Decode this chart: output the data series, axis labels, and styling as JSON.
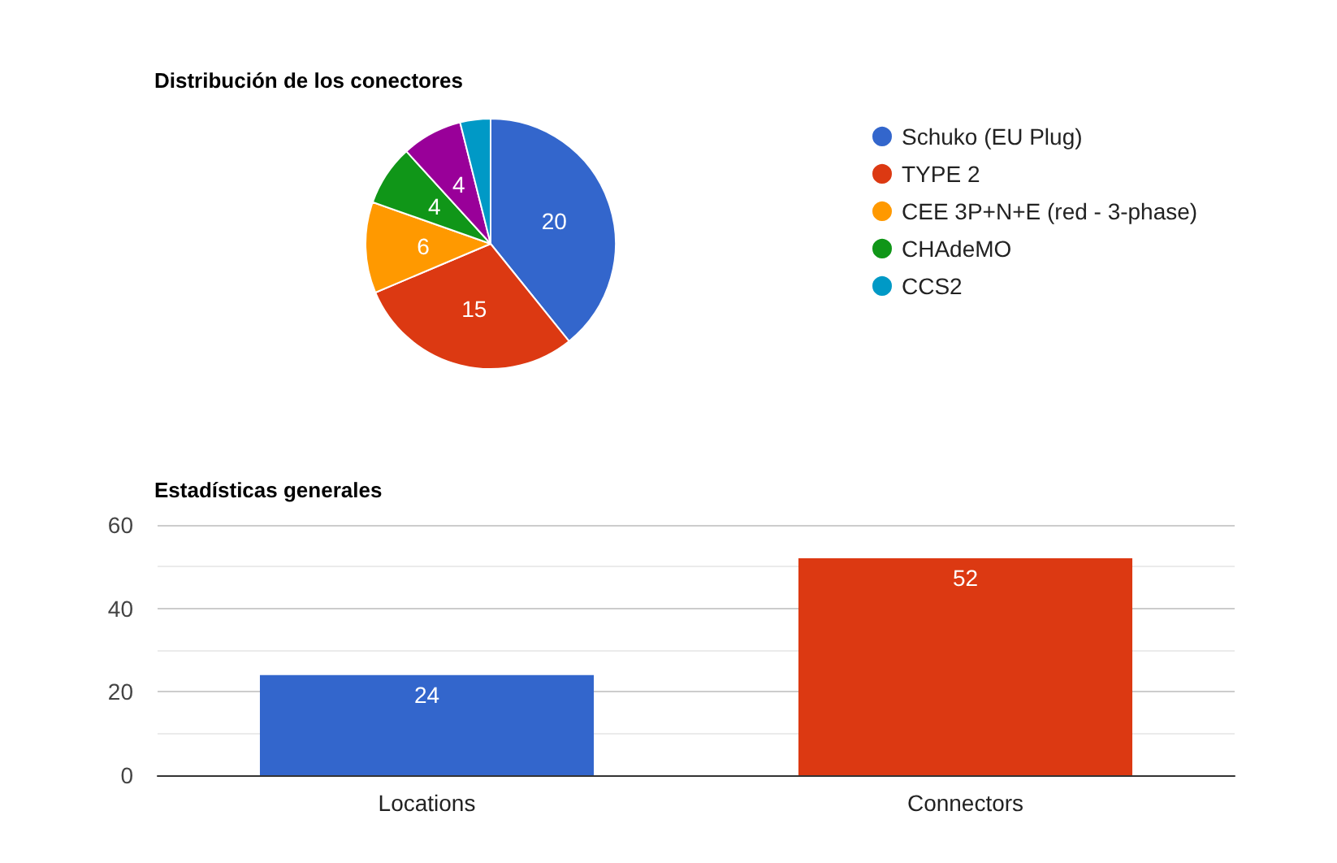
{
  "chart_data": [
    {
      "type": "pie",
      "title": "Distribución de los conectores",
      "categories": [
        "Schuko (EU Plug)",
        "TYPE 2",
        "CEE 3P+N+E (red - 3-phase)",
        "CHAdeMO",
        null,
        "CCS2"
      ],
      "values": [
        20,
        15,
        6,
        4,
        4,
        2
      ],
      "colors": [
        "#3366cc",
        "#dc3912",
        "#ff9900",
        "#109618",
        "#990099",
        "#0099c6"
      ],
      "value_labels": [
        "20",
        "15",
        "6",
        "4",
        "4",
        null
      ],
      "legend": "right"
    },
    {
      "type": "bar",
      "title": "Estadísticas generales",
      "categories": [
        "Locations",
        "Connectors"
      ],
      "values": [
        24,
        52
      ],
      "colors": [
        "#3366cc",
        "#dc3912"
      ],
      "ylim": [
        0,
        60
      ],
      "yticks": [
        0,
        {
          "value": 10,
          "label": null
        },
        20,
        {
          "value": 30,
          "label": null
        },
        40,
        {
          "value": 50,
          "label": null
        },
        60
      ],
      "grid": "y",
      "data_labels": true
    }
  ]
}
